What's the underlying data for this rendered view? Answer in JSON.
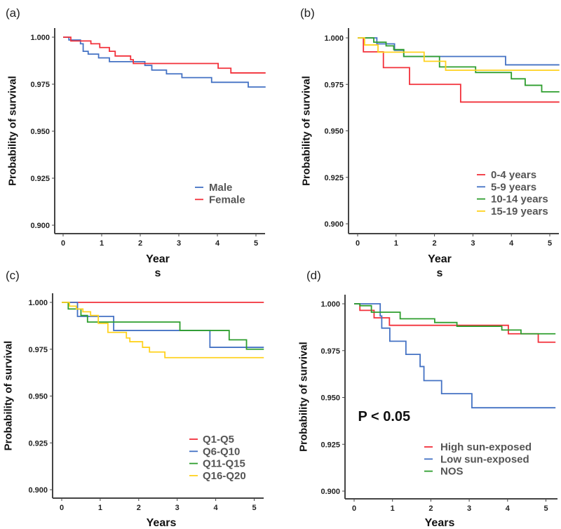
{
  "chart_data": [
    {
      "panel_label": "(a)",
      "type": "line",
      "step": true,
      "xlabel": "Year",
      "xlabel_wrap": "s",
      "ylabel": "Probability of survival",
      "xlim": [
        -0.2,
        5.25
      ],
      "ylim": [
        0.9,
        1.0
      ],
      "xticks": [
        "0",
        "1",
        "2",
        "3",
        "4",
        "5"
      ],
      "yticks": [
        "0.900",
        "0.925",
        "0.950",
        "0.975",
        "1.000"
      ],
      "grid": false,
      "legend_position": "bottom-right",
      "series": [
        {
          "name": "Male",
          "color": "#4472C4",
          "steps": [
            [
              0,
              1
            ],
            [
              0.15,
              0.9985
            ],
            [
              0.45,
              0.9965
            ],
            [
              0.52,
              0.9925
            ],
            [
              0.65,
              0.991
            ],
            [
              0.92,
              0.989
            ],
            [
              1.2,
              0.987
            ],
            [
              2.12,
              0.985
            ],
            [
              2.3,
              0.9825
            ],
            [
              2.68,
              0.9805
            ],
            [
              3.08,
              0.9785
            ],
            [
              3.85,
              0.976
            ],
            [
              4.8,
              0.9735
            ]
          ]
        },
        {
          "name": "Female",
          "color": "#F2303A",
          "steps": [
            [
              0,
              1
            ],
            [
              0.2,
              0.998
            ],
            [
              0.72,
              0.9965
            ],
            [
              0.95,
              0.9945
            ],
            [
              1.2,
              0.9925
            ],
            [
              1.35,
              0.99
            ],
            [
              1.75,
              0.988
            ],
            [
              1.82,
              0.986
            ],
            [
              4.02,
              0.9835
            ],
            [
              4.35,
              0.981
            ]
          ]
        }
      ]
    },
    {
      "panel_label": "(b)",
      "type": "line",
      "step": true,
      "xlabel": "Year",
      "xlabel_wrap": "s",
      "ylabel": "Probability of survival",
      "xlim": [
        -0.2,
        5.25
      ],
      "ylim": [
        0.9,
        1.0
      ],
      "xticks": [
        "0",
        "1",
        "2",
        "3",
        "4",
        "5"
      ],
      "yticks": [
        "0.900",
        "0.925",
        "0.950",
        "0.975",
        "1.000"
      ],
      "grid": false,
      "legend_position": "bottom-right",
      "series": [
        {
          "name": "0-4 years",
          "color": "#F2303A",
          "steps": [
            [
              0,
              1
            ],
            [
              0.15,
              0.9925
            ],
            [
              0.67,
              0.984
            ],
            [
              1.35,
              0.975
            ],
            [
              2.68,
              0.9655
            ]
          ]
        },
        {
          "name": "5-9 years",
          "color": "#4472C4",
          "steps": [
            [
              0,
              1
            ],
            [
              0.5,
              0.9968
            ],
            [
              0.96,
              0.9933
            ],
            [
              1.2,
              0.99
            ],
            [
              3.85,
              0.9855
            ]
          ]
        },
        {
          "name": "10-14 years",
          "color": "#2E9E2E",
          "steps": [
            [
              0,
              1
            ],
            [
              0.42,
              0.9977
            ],
            [
              0.74,
              0.9957
            ],
            [
              0.94,
              0.9937
            ],
            [
              1.2,
              0.99
            ],
            [
              2.13,
              0.9844
            ],
            [
              3.07,
              0.9814
            ],
            [
              4.0,
              0.978
            ],
            [
              4.36,
              0.9745
            ],
            [
              4.79,
              0.971
            ]
          ]
        },
        {
          "name": "15-19 years",
          "color": "#FFD21F",
          "steps": [
            [
              0,
              1
            ],
            [
              0.18,
              0.9962
            ],
            [
              0.53,
              0.9923
            ],
            [
              1.73,
              0.9874
            ],
            [
              2.29,
              0.9826
            ]
          ]
        }
      ]
    },
    {
      "panel_label": "(c)",
      "type": "line",
      "step": true,
      "xlabel": "Years",
      "xlabel_wrap": "",
      "ylabel": "Probability of survival",
      "xlim": [
        -0.2,
        5.25
      ],
      "ylim": [
        0.9,
        1.0
      ],
      "xticks": [
        "0",
        "1",
        "2",
        "3",
        "4",
        "5"
      ],
      "yticks": [
        "0.900",
        "0.925",
        "0.950",
        "0.975",
        "1.000"
      ],
      "grid": false,
      "legend_position": "bottom-right",
      "series": [
        {
          "name": "Q1-Q5",
          "color": "#F2303A",
          "steps": [
            [
              0,
              1
            ]
          ]
        },
        {
          "name": "Q6-Q10",
          "color": "#4472C4",
          "steps": [
            [
              0,
              1
            ],
            [
              0.41,
              0.9925
            ],
            [
              1.35,
              0.985
            ],
            [
              3.85,
              0.976
            ]
          ]
        },
        {
          "name": "Q11-Q15",
          "color": "#2E9E2E",
          "steps": [
            [
              0,
              1
            ],
            [
              0.17,
              0.9965
            ],
            [
              0.5,
              0.993
            ],
            [
              0.67,
              0.9895
            ],
            [
              3.07,
              0.985
            ],
            [
              4.35,
              0.98
            ],
            [
              4.8,
              0.975
            ]
          ]
        },
        {
          "name": "Q16-Q20",
          "color": "#FFD21F",
          "steps": [
            [
              0,
              1
            ],
            [
              0.2,
              0.998
            ],
            [
              0.38,
              0.9965
            ],
            [
              0.55,
              0.995
            ],
            [
              0.75,
              0.993
            ],
            [
              0.95,
              0.9888
            ],
            [
              1.2,
              0.984
            ],
            [
              1.68,
              0.981
            ],
            [
              1.77,
              0.979
            ],
            [
              2.1,
              0.976
            ],
            [
              2.28,
              0.9735
            ],
            [
              2.68,
              0.9705
            ]
          ]
        }
      ]
    },
    {
      "panel_label": "(d)",
      "type": "line",
      "step": true,
      "xlabel": "Years",
      "xlabel_wrap": "",
      "ylabel": "Probability of survival",
      "xlim": [
        -0.2,
        5.25
      ],
      "ylim": [
        0.9,
        1.0
      ],
      "xticks": [
        "0",
        "1",
        "2",
        "3",
        "4",
        "5"
      ],
      "yticks": [
        "0.900",
        "0.925",
        "0.950",
        "0.975",
        "1.000"
      ],
      "grid": false,
      "legend_position": "bottom-right",
      "annotation": "P < 0.05",
      "series": [
        {
          "name": "High sun-exposed",
          "color": "#F2303A",
          "steps": [
            [
              0,
              1
            ],
            [
              0.15,
              0.9965
            ],
            [
              0.52,
              0.9925
            ],
            [
              0.92,
              0.9885
            ],
            [
              4.02,
              0.984
            ],
            [
              4.8,
              0.9795
            ]
          ]
        },
        {
          "name": "Low sun-exposed",
          "color": "#4472C4",
          "steps": [
            [
              0,
              1
            ],
            [
              0.68,
              0.9935
            ],
            [
              0.72,
              0.987
            ],
            [
              0.93,
              0.98
            ],
            [
              1.35,
              0.973
            ],
            [
              1.72,
              0.9665
            ],
            [
              1.82,
              0.959
            ],
            [
              2.28,
              0.952
            ],
            [
              3.07,
              0.9445
            ]
          ]
        },
        {
          "name": "NOS",
          "color": "#2E9E2E",
          "steps": [
            [
              0,
              1
            ],
            [
              0.15,
              0.999
            ],
            [
              0.45,
              0.9955
            ],
            [
              1.2,
              0.992
            ],
            [
              2.1,
              0.99
            ],
            [
              2.68,
              0.988
            ],
            [
              3.85,
              0.986
            ],
            [
              4.35,
              0.984
            ]
          ]
        }
      ]
    }
  ]
}
